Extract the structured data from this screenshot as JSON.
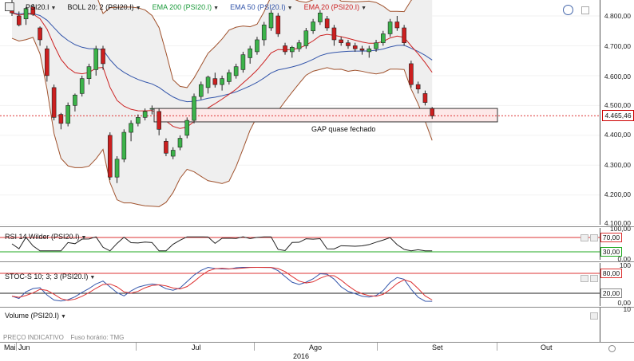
{
  "main": {
    "legend": {
      "symbol": "PSI20.I",
      "boll": "BOLL 20; 2 (PSI20.I)",
      "ema200": "EMA 200 (PSI20.I)",
      "ema50": "EMA 50 (PSI20.I)",
      "ema20": "EMA 20 (PSI20.I)"
    },
    "y_labels": [
      "4.800,00",
      "4.700,00",
      "4.600,00",
      "4.500,00",
      "4.400,00",
      "4.300,00",
      "4.200,00",
      "4.100,00"
    ],
    "last_price": "4.465,46",
    "annotation": "GAP quase fechado",
    "colors": {
      "ema200": "#1a9a3a",
      "ema50": "#3355aa",
      "ema20": "#cc2222",
      "boll": "#a0522d",
      "up": "#3cb34a",
      "down": "#cc1f1f"
    }
  },
  "rsi": {
    "legend": "RSI 14 Wilder (PSI20.I)",
    "y_top": "100,00",
    "upper": "70,00",
    "lower": "30,00",
    "bottom": "0,00"
  },
  "stoch": {
    "legend": "STOC-S 10; 3; 3 (PSI20.I)",
    "y_top": "100",
    "upper": "80,00",
    "lower": "20,00",
    "bottom": "0,00"
  },
  "volume": {
    "legend": "Volume (PSI20.I)",
    "y_top": "10",
    "footer": "PREÇO INDICATIVO",
    "timezone": "Fuso horário: TMG"
  },
  "xaxis": {
    "labels": [
      "Mai",
      "Jun",
      "Jul",
      "Ago",
      "Set",
      "Out"
    ],
    "year": "2016"
  },
  "chart_data": {
    "type": "candlestick",
    "title": "PSI20.I",
    "ylim": [
      4170,
      4850
    ],
    "y_ticks": [
      4800,
      4700,
      4600,
      4500,
      4400,
      4300,
      4200,
      4100
    ],
    "last_price": 4465.46,
    "annotation": {
      "text": "GAP quase fechado",
      "zone": [
        4445,
        4490
      ]
    },
    "ohlc": [
      [
        4840,
        4855,
        4800,
        4810
      ],
      [
        4800,
        4815,
        4765,
        4770
      ],
      [
        4790,
        4830,
        4770,
        4825
      ],
      [
        4830,
        4840,
        4800,
        4805
      ],
      [
        4760,
        4765,
        4700,
        4720
      ],
      [
        4690,
        4700,
        4580,
        4600
      ],
      [
        4560,
        4570,
        4450,
        4460
      ],
      [
        4470,
        4475,
        4420,
        4440
      ],
      [
        4440,
        4510,
        4430,
        4500
      ],
      [
        4500,
        4540,
        4480,
        4535
      ],
      [
        4540,
        4600,
        4530,
        4590
      ],
      [
        4590,
        4640,
        4570,
        4630
      ],
      [
        4620,
        4700,
        4600,
        4690
      ],
      [
        4690,
        4700,
        4620,
        4640
      ],
      [
        4400,
        4410,
        4250,
        4260
      ],
      [
        4260,
        4330,
        4240,
        4320
      ],
      [
        4320,
        4420,
        4310,
        4410
      ],
      [
        4410,
        4450,
        4380,
        4440
      ],
      [
        4440,
        4470,
        4430,
        4460
      ],
      [
        4460,
        4490,
        4450,
        4480
      ],
      [
        4490,
        4500,
        4470,
        4490
      ],
      [
        4480,
        4490,
        4400,
        4420
      ],
      [
        4380,
        4390,
        4330,
        4340
      ],
      [
        4330,
        4360,
        4320,
        4350
      ],
      [
        4360,
        4400,
        4350,
        4390
      ],
      [
        4400,
        4460,
        4390,
        4450
      ],
      [
        4450,
        4540,
        4440,
        4530
      ],
      [
        4530,
        4580,
        4520,
        4570
      ],
      [
        4560,
        4600,
        4540,
        4595
      ],
      [
        4590,
        4610,
        4560,
        4570
      ],
      [
        4570,
        4600,
        4550,
        4590
      ],
      [
        4580,
        4620,
        4570,
        4610
      ],
      [
        4600,
        4640,
        4590,
        4630
      ],
      [
        4620,
        4680,
        4610,
        4670
      ],
      [
        4660,
        4700,
        4640,
        4690
      ],
      [
        4680,
        4730,
        4670,
        4720
      ],
      [
        4720,
        4780,
        4700,
        4770
      ],
      [
        4760,
        4820,
        4750,
        4810
      ],
      [
        4800,
        4810,
        4730,
        4740
      ],
      [
        4700,
        4710,
        4670,
        4680
      ],
      [
        4680,
        4700,
        4660,
        4695
      ],
      [
        4690,
        4720,
        4680,
        4710
      ],
      [
        4700,
        4760,
        4690,
        4750
      ],
      [
        4750,
        4790,
        4740,
        4780
      ],
      [
        4780,
        4820,
        4770,
        4810
      ],
      [
        4790,
        4800,
        4750,
        4760
      ],
      [
        4760,
        4770,
        4700,
        4720
      ],
      [
        4720,
        4730,
        4700,
        4710
      ],
      [
        4710,
        4720,
        4690,
        4700
      ],
      [
        4700,
        4710,
        4680,
        4690
      ],
      [
        4690,
        4700,
        4670,
        4685
      ],
      [
        4680,
        4700,
        4660,
        4690
      ],
      [
        4690,
        4720,
        4680,
        4710
      ],
      [
        4710,
        4750,
        4700,
        4740
      ],
      [
        4740,
        4790,
        4730,
        4780
      ],
      [
        4780,
        4800,
        4750,
        4760
      ],
      [
        4760,
        4770,
        4700,
        4710
      ],
      [
        4640,
        4650,
        4560,
        4570
      ],
      [
        4570,
        4580,
        4540,
        4555
      ],
      [
        4540,
        4550,
        4500,
        4510
      ],
      [
        4490,
        4495,
        4455,
        4465
      ]
    ]
  }
}
